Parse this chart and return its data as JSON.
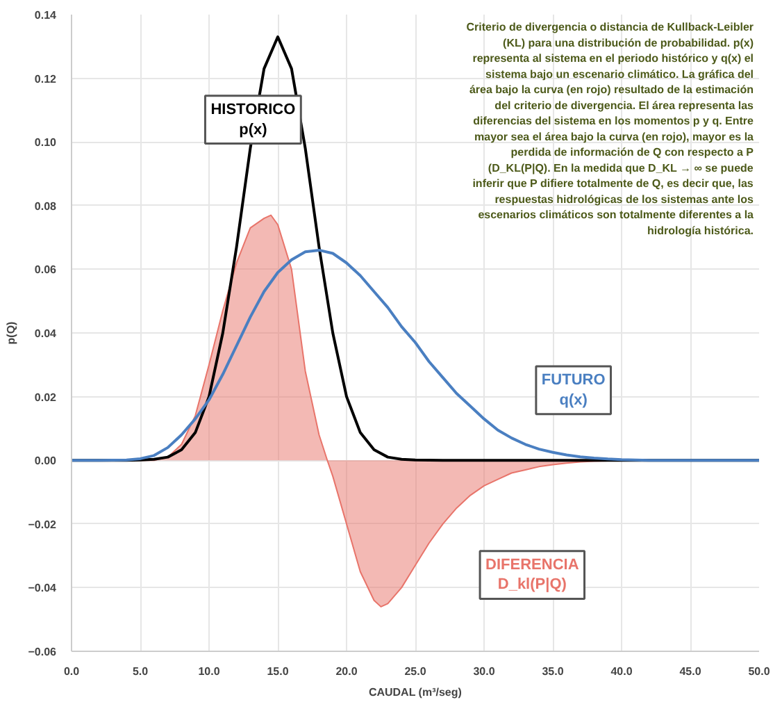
{
  "chart_data": {
    "type": "line",
    "xlabel": "CAUDAL (m³/seg)",
    "ylabel": "p(Q)",
    "xlim": [
      0,
      50
    ],
    "ylim": [
      -0.06,
      0.14
    ],
    "xticks": [
      {
        "value": 0,
        "label": "0.0"
      },
      {
        "value": 5,
        "label": "5.0"
      },
      {
        "value": 10,
        "label": "10.0"
      },
      {
        "value": 15,
        "label": "15.0"
      },
      {
        "value": 20,
        "label": "20.0"
      },
      {
        "value": 25,
        "label": "25.0"
      },
      {
        "value": 30,
        "label": "30.0"
      },
      {
        "value": 35,
        "label": "35.0"
      },
      {
        "value": 40,
        "label": "40.0"
      },
      {
        "value": 45,
        "label": "45.0"
      },
      {
        "value": 50,
        "label": "50.0"
      }
    ],
    "yticks": [
      -0.06,
      -0.04,
      -0.02,
      {
        "value": 0,
        "label": "0.00"
      },
      0.02,
      0.04,
      0.06,
      0.08,
      {
        "value": 0.1,
        "label": "0.10"
      },
      0.12,
      0.14
    ],
    "grid": true,
    "legend": false,
    "series": [
      {
        "name": "HISTORICO\np(x)",
        "color": "#000000",
        "x": [
          0,
          2,
          4,
          5,
          6,
          7,
          8,
          9,
          10,
          11,
          12,
          13,
          14,
          15,
          16,
          17,
          18,
          19,
          20,
          21,
          22,
          23,
          24,
          25,
          27,
          30,
          35,
          40,
          45,
          50
        ],
        "values": [
          0,
          0,
          0,
          0.0001,
          0.0003,
          0.001,
          0.0033,
          0.0087,
          0.02,
          0.04,
          0.067,
          0.098,
          0.123,
          0.133,
          0.123,
          0.098,
          0.067,
          0.04,
          0.02,
          0.0087,
          0.0033,
          0.001,
          0.0003,
          0.0001,
          0,
          0,
          0,
          0,
          0,
          0
        ]
      },
      {
        "name": "FUTURO\nq(x)",
        "color": "#4a7fc1",
        "x": [
          0,
          2,
          4,
          5,
          6,
          7,
          8,
          9,
          10,
          11,
          12,
          13,
          14,
          15,
          16,
          17,
          18,
          19,
          20,
          21,
          22,
          23,
          24,
          25,
          26,
          27,
          28,
          29,
          30,
          31,
          32,
          33,
          34,
          35,
          36,
          37,
          38,
          39,
          40,
          41,
          42,
          45,
          50
        ],
        "values": [
          0,
          0,
          0.0001,
          0.0005,
          0.0015,
          0.004,
          0.008,
          0.013,
          0.019,
          0.027,
          0.036,
          0.045,
          0.053,
          0.059,
          0.063,
          0.0655,
          0.066,
          0.065,
          0.062,
          0.058,
          0.053,
          0.048,
          0.042,
          0.037,
          0.031,
          0.026,
          0.021,
          0.017,
          0.013,
          0.0095,
          0.007,
          0.005,
          0.0035,
          0.0025,
          0.0017,
          0.0011,
          0.0007,
          0.0004,
          0.0002,
          0.0001,
          0,
          0,
          0
        ]
      },
      {
        "name": "DIFERENCIA\nD_kl(P|Q)",
        "type": "area",
        "color": "#e8746a",
        "x": [
          0,
          5,
          6,
          7,
          8,
          9,
          10,
          11,
          12,
          13,
          14,
          14.5,
          15,
          16,
          17,
          18,
          18.6,
          19,
          20,
          21,
          22,
          22.5,
          23,
          24,
          25,
          26,
          27,
          28,
          29,
          30,
          31,
          32,
          33,
          34,
          35,
          36,
          37,
          38,
          39,
          40,
          41,
          42,
          50
        ],
        "values": [
          0,
          0,
          0,
          0.001,
          0.005,
          0.014,
          0.03,
          0.047,
          0.062,
          0.073,
          0.076,
          0.077,
          0.074,
          0.06,
          0.028,
          0.008,
          0,
          -0.005,
          -0.02,
          -0.035,
          -0.044,
          -0.046,
          -0.045,
          -0.04,
          -0.033,
          -0.026,
          -0.02,
          -0.015,
          -0.011,
          -0.008,
          -0.006,
          -0.004,
          -0.003,
          -0.002,
          -0.0014,
          -0.0009,
          -0.0005,
          -0.0003,
          -0.0002,
          -0.0001,
          0,
          0,
          0
        ]
      }
    ],
    "annotations": [
      "Criterio de divergencia o distancia de Kullback-Leibler\n(KL) para una distribución de probabilidad. p(x)\nrepresenta al sistema en el periodo histórico y q(x) el\nsistema bajo un escenario climático. La gráfica del\nárea bajo la curva (en rojo) resultado de la estimación\ndel criterio de divergencia. El área representa las\ndiferencias del sistema en los momentos p y q. Entre\nmayor sea el área bajo la curva (en rojo), mayor es la\nperdida de información de Q con respecto a P\n(D_KL(P|Q). En la medida que D_KL → ∞ se puede\ninferir que P difiere totalmente de Q, es decir que, las\nrespuestas hidrológicas de los sistemas ante los\nescenarios climáticos son totalmente diferentes a la\nhidrología histórica."
    ]
  }
}
